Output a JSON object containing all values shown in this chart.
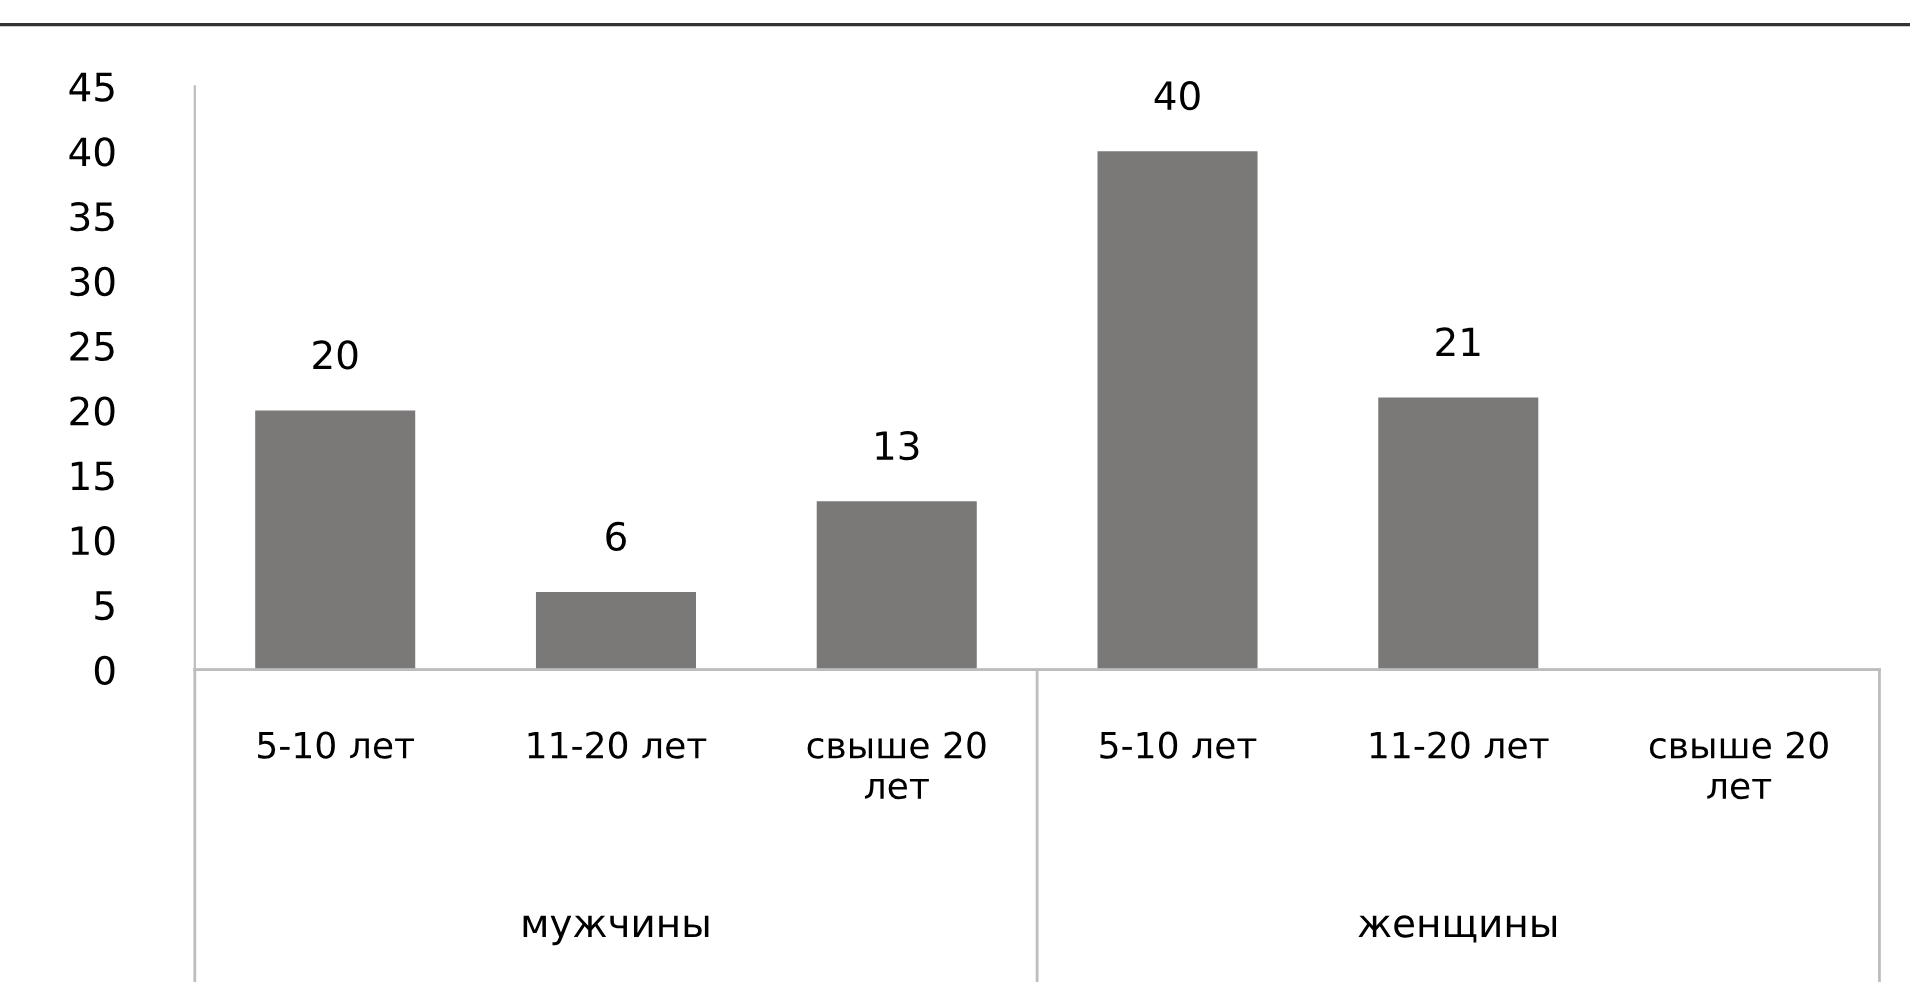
{
  "chart_data": {
    "type": "bar",
    "categories": [
      "5-10 лет",
      "11-20 лет",
      "свыше 20 лет",
      "5-10 лет",
      "11-20 лет",
      "свыше 20 лет"
    ],
    "values": [
      20,
      6,
      13,
      40,
      21,
      null
    ],
    "color": "#7a7978",
    "ylim": [
      0,
      45
    ],
    "yticks": [
      0,
      5,
      10,
      15,
      20,
      25,
      30,
      35,
      40,
      45
    ],
    "data_labels": true,
    "grid": false,
    "legend": false,
    "annotations": [
      "мужчины",
      "женщины"
    ]
  }
}
